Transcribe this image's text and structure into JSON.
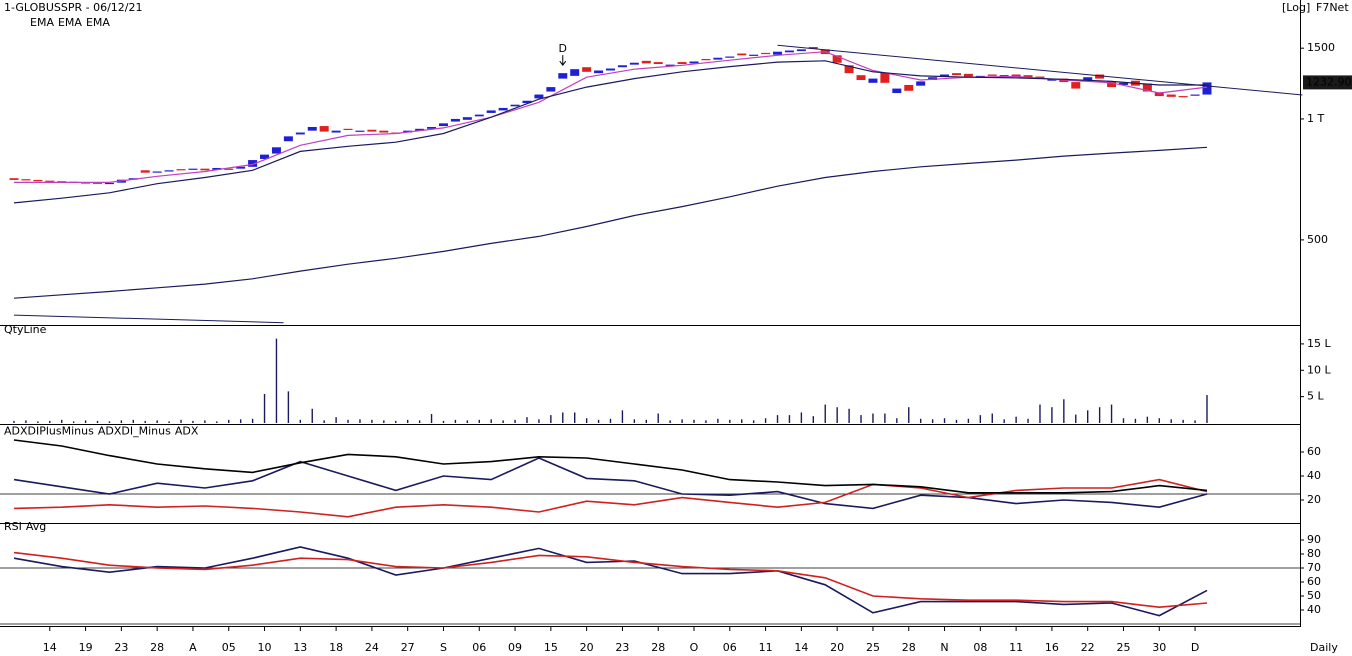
{
  "chart_data": [
    {
      "type": "candlestick",
      "title": "1-GLOBUSSPR - 06/12/21",
      "scale_label": "[Log]",
      "source": "F7Net",
      "categories": [
        null,
        null,
        null,
        "14",
        null,
        null,
        "19",
        null,
        null,
        "23",
        null,
        null,
        "28",
        null,
        null,
        "A",
        null,
        null,
        "05",
        null,
        null,
        "10",
        null,
        null,
        "13",
        null,
        null,
        "18",
        null,
        null,
        "24",
        null,
        null,
        "27",
        null,
        null,
        "S",
        null,
        null,
        "06",
        null,
        null,
        "09",
        null,
        null,
        "15",
        null,
        null,
        "20",
        null,
        null,
        "23",
        null,
        null,
        "28",
        null,
        null,
        "O",
        null,
        null,
        "06",
        null,
        null,
        "11",
        null,
        null,
        "14",
        null,
        null,
        "20",
        null,
        null,
        "25",
        null,
        null,
        "28",
        null,
        null,
        "N",
        null,
        null,
        "08",
        null,
        null,
        "11",
        null,
        null,
        "16",
        null,
        null,
        "22",
        null,
        null,
        "25",
        null,
        null,
        "30",
        null,
        null,
        "D",
        null
      ],
      "open": [
        712,
        708,
        705,
        702,
        700,
        698,
        695,
        694,
        692,
        694,
        706,
        745,
        738,
        742,
        750,
        750,
        752,
        748,
        752,
        752,
        760,
        795,
        820,
        880,
        915,
        935,
        960,
        925,
        945,
        930,
        940,
        935,
        925,
        925,
        935,
        945,
        960,
        985,
        995,
        1015,
        1035,
        1050,
        1075,
        1095,
        1125,
        1170,
        1260,
        1280,
        1345,
        1300,
        1320,
        1345,
        1365,
        1395,
        1385,
        1355,
        1385,
        1375,
        1410,
        1405,
        1420,
        1455,
        1435,
        1460,
        1445,
        1465,
        1475,
        1510,
        1490,
        1440,
        1360,
        1285,
        1230,
        1305,
        1160,
        1215,
        1210,
        1250,
        1275,
        1300,
        1295,
        1265,
        1290,
        1275,
        1290,
        1285,
        1275,
        1245,
        1260,
        1235,
        1250,
        1290,
        1240,
        1215,
        1245,
        1225,
        1165,
        1150,
        1140,
        1145,
        1150
      ],
      "close": [
        705,
        703,
        700,
        698,
        697,
        694,
        692,
        690,
        693,
        706,
        712,
        735,
        740,
        745,
        748,
        752,
        745,
        755,
        748,
        760,
        790,
        815,
        850,
        905,
        925,
        955,
        930,
        935,
        940,
        935,
        930,
        925,
        920,
        935,
        945,
        955,
        975,
        1000,
        1010,
        1025,
        1050,
        1065,
        1085,
        1110,
        1150,
        1200,
        1300,
        1330,
        1310,
        1320,
        1335,
        1360,
        1380,
        1375,
        1370,
        1365,
        1370,
        1390,
        1400,
        1420,
        1430,
        1440,
        1445,
        1450,
        1470,
        1480,
        1490,
        1495,
        1450,
        1380,
        1300,
        1250,
        1260,
        1230,
        1190,
        1175,
        1240,
        1270,
        1290,
        1285,
        1275,
        1280,
        1280,
        1285,
        1275,
        1270,
        1260,
        1255,
        1235,
        1190,
        1270,
        1260,
        1200,
        1230,
        1210,
        1170,
        1140,
        1135,
        1135,
        1150,
        1232.9
      ],
      "up_color": "#1f1fd6",
      "down_color": "#e0201c",
      "log_scale": true,
      "ylim": [
        307,
        1977
      ],
      "yticks": [
        1500,
        {
          "value": 1000,
          "label": "1 T"
        },
        500
      ],
      "last_price": {
        "value": 1232.9,
        "label": "1232.90"
      },
      "marker": {
        "index": 46,
        "label": "D"
      },
      "overlays": {
        "x": [
          0,
          4,
          8,
          12,
          16,
          20,
          24,
          28,
          32,
          36,
          40,
          44,
          48,
          52,
          56,
          60,
          64,
          68,
          72,
          76,
          80,
          84,
          88,
          92,
          96,
          100
        ],
        "series": [
          {
            "name": "EMA",
            "color": "#c040c0",
            "values": [
              695,
              695,
              695,
              720,
              740,
              770,
              860,
              910,
              920,
              950,
              1010,
              1100,
              1270,
              1330,
              1360,
              1400,
              1440,
              1470,
              1320,
              1250,
              1270,
              1275,
              1250,
              1230,
              1160,
              1200
            ]
          },
          {
            "name": "EMA",
            "color": "#1a1a5e",
            "values": [
              618,
              635,
              655,
              690,
              715,
              745,
              830,
              855,
              875,
              920,
              1010,
              1120,
              1200,
              1260,
              1310,
              1350,
              1385,
              1395,
              1310,
              1280,
              1270,
              1265,
              1255,
              1240,
              1215,
              1215
            ]
          },
          {
            "name": "EMA",
            "color": "#1a1a5e",
            "values": [
              358,
              365,
              372,
              380,
              388,
              400,
              418,
              435,
              450,
              468,
              490,
              510,
              540,
              575,
              605,
              640,
              680,
              715,
              740,
              760,
              775,
              790,
              808,
              822,
              835,
              850
            ]
          }
        ]
      },
      "trendlines": [
        {
          "color": "#1a1a5e",
          "x": [
            64,
            108
          ],
          "values": [
            1525,
            1147
          ]
        },
        {
          "color": "#1a1a5e",
          "x": [
            0,
            22.6
          ],
          "values": [
            325,
            311
          ]
        }
      ]
    },
    {
      "type": "bar",
      "title": "QtyLine",
      "color": "#1a1a5e",
      "values": [
        0.4,
        0.5,
        0.3,
        0.4,
        0.6,
        0.3,
        0.5,
        0.4,
        0.3,
        0.5,
        0.6,
        0.4,
        0.5,
        0.3,
        0.6,
        0.4,
        0.5,
        0.3,
        0.6,
        0.7,
        0.8,
        5.5,
        16,
        6,
        0.6,
        2.7,
        0.5,
        1.1,
        0.6,
        0.7,
        0.6,
        0.5,
        0.4,
        0.6,
        0.5,
        1.7,
        0.4,
        0.6,
        0.5,
        0.6,
        0.7,
        0.5,
        0.6,
        1.1,
        0.7,
        1.5,
        2,
        2,
        0.9,
        0.6,
        0.8,
        2.4,
        0.7,
        0.6,
        1.8,
        0.5,
        0.7,
        0.6,
        0.5,
        0.8,
        0.6,
        0.7,
        0.5,
        0.9,
        1.5,
        1.5,
        2,
        1.3,
        3.5,
        3,
        2.7,
        1.5,
        1.8,
        1.8,
        0.9,
        3,
        0.8,
        0.7,
        0.9,
        0.6,
        0.8,
        1.5,
        1.8,
        0.7,
        1.2,
        0.8,
        3.5,
        3,
        4.5,
        1.6,
        2.4,
        3,
        3.5,
        0.9,
        0.8,
        1.2,
        0.9,
        0.7,
        0.6,
        0.5,
        5.3
      ],
      "ylim": [
        0,
        16.5
      ],
      "yticks": [
        {
          "value": 15,
          "label": "15 L"
        },
        {
          "value": 10,
          "label": "10 L"
        },
        {
          "value": 5,
          "label": "5 L"
        }
      ]
    },
    {
      "type": "line",
      "x": [
        0,
        4,
        8,
        12,
        16,
        20,
        24,
        28,
        32,
        36,
        40,
        44,
        48,
        52,
        56,
        60,
        64,
        68,
        72,
        76,
        80,
        84,
        88,
        92,
        96,
        100
      ],
      "series": [
        {
          "name": "ADXDIPlusMinus",
          "color": "#1a1a5e",
          "values": [
            37,
            31,
            25,
            34,
            30,
            36,
            52,
            40,
            28,
            40,
            37,
            55,
            38,
            36,
            25,
            24,
            27,
            17,
            13,
            24,
            22,
            17,
            20,
            18,
            14,
            25
          ]
        },
        {
          "name": "ADXDI_Minus",
          "color": "#d02020",
          "values": [
            13,
            14,
            16,
            14,
            15,
            13,
            10,
            6,
            14,
            16,
            14,
            10,
            19,
            16,
            22,
            18,
            14,
            18,
            33,
            30,
            22,
            28,
            30,
            30,
            37,
            27
          ]
        },
        {
          "name": "ADX",
          "color": "#000000",
          "values": [
            70,
            65,
            57,
            50,
            46,
            43,
            51,
            58,
            56,
            50,
            52,
            56,
            55,
            50,
            45,
            37,
            35,
            32,
            33,
            31,
            26,
            26,
            26,
            27,
            32,
            28
          ]
        }
      ],
      "ylim": [
        0,
        72
      ],
      "yticks": [
        60,
        40,
        20
      ],
      "hlines": [
        25
      ]
    },
    {
      "type": "line",
      "x": [
        0,
        4,
        8,
        12,
        16,
        20,
        24,
        28,
        32,
        36,
        40,
        44,
        48,
        52,
        56,
        60,
        64,
        68,
        72,
        76,
        80,
        84,
        88,
        92,
        96,
        100
      ],
      "series": [
        {
          "name": "RSI",
          "color": "#1a1a5e",
          "values": [
            77,
            71,
            67,
            71,
            70,
            77,
            85,
            77,
            65,
            70,
            77,
            84,
            74,
            75,
            66,
            66,
            68,
            58,
            38,
            46,
            46,
            46,
            44,
            45,
            36,
            54
          ]
        },
        {
          "name": "Avg",
          "color": "#d02020",
          "values": [
            81,
            77,
            72,
            70,
            69,
            72,
            77,
            76,
            71,
            70,
            74,
            79,
            78,
            74,
            71,
            69,
            68,
            63,
            50,
            48,
            47,
            47,
            46,
            46,
            42,
            45
          ]
        }
      ],
      "ylim": [
        29,
        95
      ],
      "yticks": [
        90,
        80,
        70,
        60,
        50,
        40
      ],
      "hlines": [
        70,
        30
      ]
    }
  ],
  "x_axis_label": "Daily"
}
